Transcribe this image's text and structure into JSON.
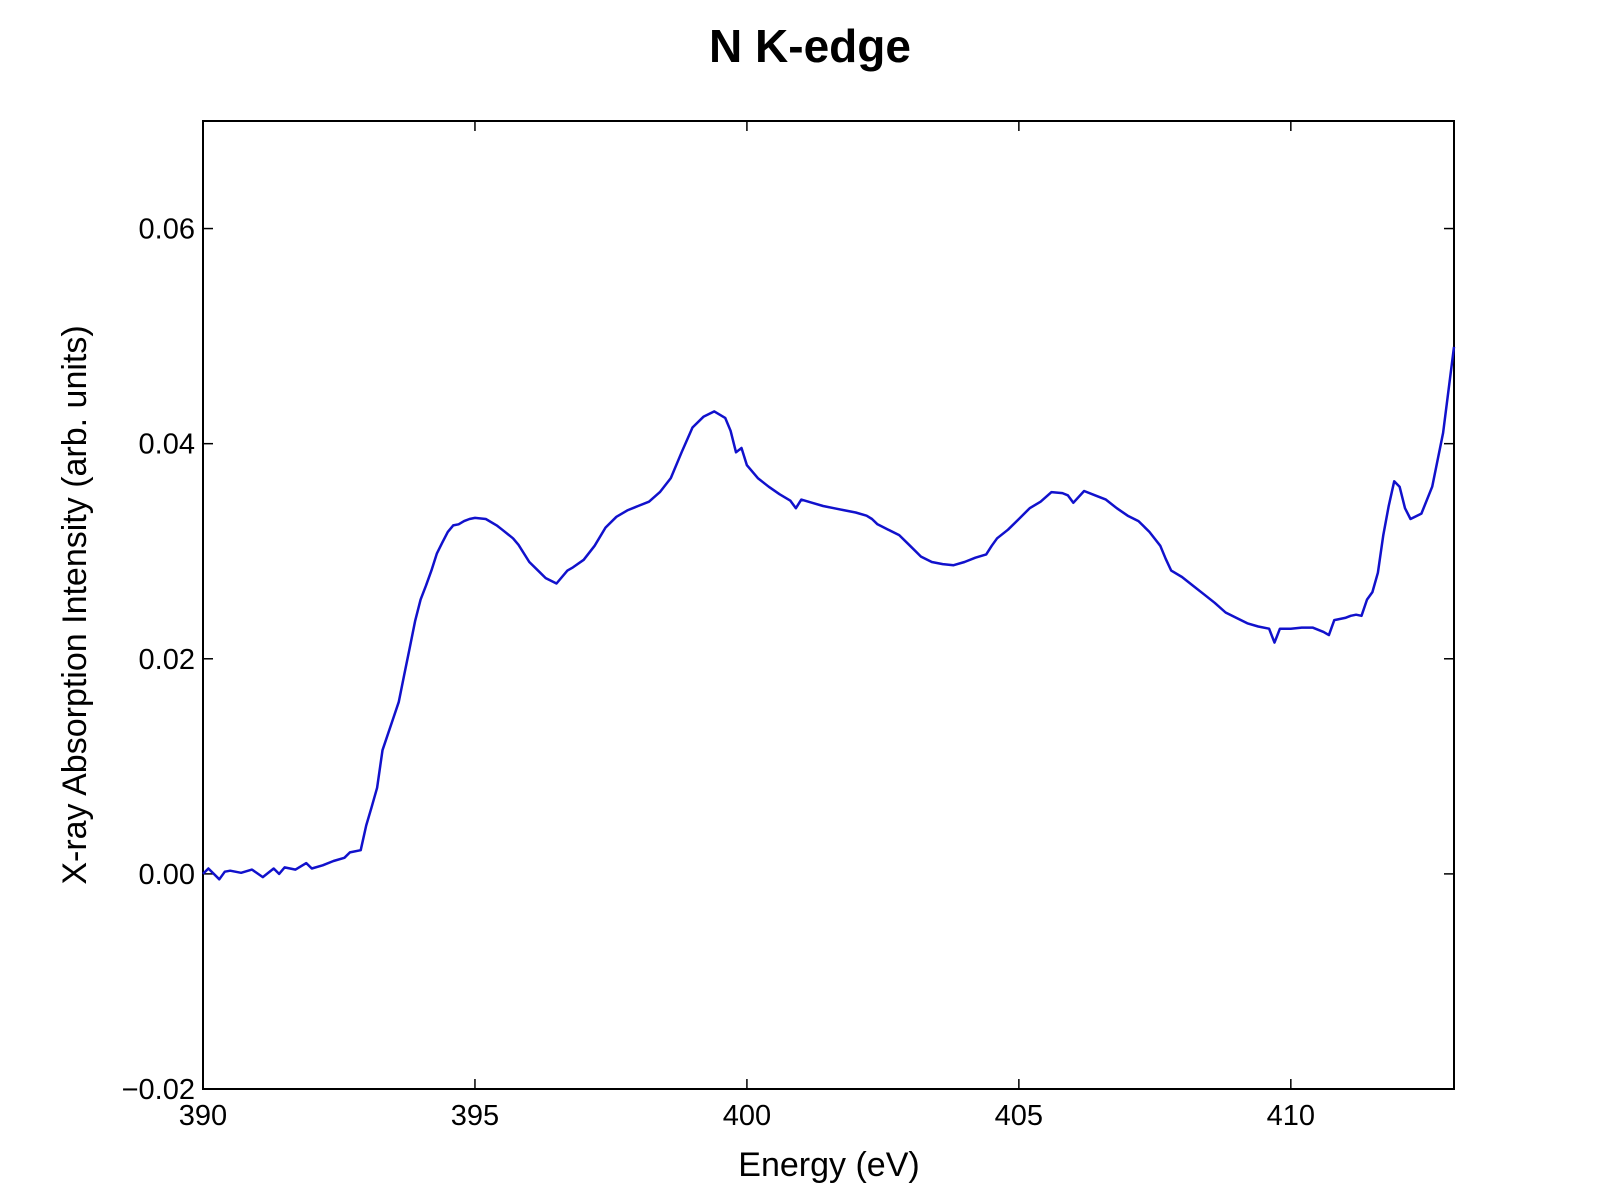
{
  "chart_data": {
    "type": "line",
    "title": "N K-edge",
    "xlabel": "Energy (eV)",
    "ylabel": "X-ray Absorption Intensity (arb. units)",
    "xlim": [
      390,
      413
    ],
    "ylim": [
      -0.02,
      0.07
    ],
    "xticks": [
      390,
      395,
      400,
      405,
      410
    ],
    "xtick_labels": [
      "390",
      "395",
      "400",
      "405",
      "410"
    ],
    "yticks": [
      -0.02,
      0.0,
      0.02,
      0.04,
      0.06
    ],
    "ytick_labels": [
      "−0.02",
      "0.00",
      "0.02",
      "0.04",
      "0.06"
    ],
    "grid": false,
    "line_color": "#1111cc",
    "series": [
      {
        "x": [
          390.0,
          390.1,
          390.3,
          390.4,
          390.5,
          390.7,
          390.9,
          391.1,
          391.3,
          391.4,
          391.5,
          391.7,
          391.9,
          392.0,
          392.2,
          392.4,
          392.6,
          392.7,
          392.9,
          393.0,
          393.1,
          393.2,
          393.3,
          393.5,
          393.6,
          393.7,
          393.8,
          393.9,
          394.0,
          394.1,
          394.2,
          394.3,
          394.4,
          394.5,
          394.6,
          394.7,
          394.8,
          394.9,
          395.0,
          395.2,
          395.4,
          395.5,
          395.6,
          395.7,
          395.8,
          396.0,
          396.2,
          396.3,
          396.5,
          396.7,
          396.8,
          397.0,
          397.2,
          397.4,
          397.6,
          397.8,
          398.0,
          398.2,
          398.4,
          398.6,
          398.8,
          399.0,
          399.2,
          399.4,
          399.6,
          399.7,
          399.8,
          399.9,
          400.0,
          400.2,
          400.4,
          400.6,
          400.8,
          400.9,
          401.0,
          401.2,
          401.4,
          401.6,
          401.8,
          402.0,
          402.2,
          402.3,
          402.4,
          402.6,
          402.8,
          403.0,
          403.2,
          403.4,
          403.6,
          403.8,
          404.0,
          404.2,
          404.4,
          404.5,
          404.6,
          404.8,
          405.0,
          405.2,
          405.4,
          405.6,
          405.8,
          405.9,
          406.0,
          406.2,
          406.4,
          406.6,
          406.8,
          407.0,
          407.2,
          407.4,
          407.6,
          407.7,
          407.8,
          408.0,
          408.2,
          408.4,
          408.6,
          408.8,
          409.0,
          409.2,
          409.4,
          409.6,
          409.7,
          409.8,
          410.0,
          410.2,
          410.4,
          410.6,
          410.7,
          410.8,
          411.0,
          411.1,
          411.2,
          411.3,
          411.4,
          411.5,
          411.6,
          411.7,
          411.8,
          411.9,
          412.0,
          412.1,
          412.2,
          412.4,
          412.6,
          412.8,
          413.0
        ],
        "y": [
          0.0,
          0.0005,
          -0.0005,
          0.0002,
          0.0003,
          0.0001,
          0.0004,
          -0.0003,
          0.0005,
          0.0,
          0.0006,
          0.0004,
          0.001,
          0.0005,
          0.0008,
          0.0012,
          0.0015,
          0.002,
          0.0022,
          0.0045,
          0.0062,
          0.008,
          0.0115,
          0.0145,
          0.016,
          0.0185,
          0.021,
          0.0235,
          0.0255,
          0.0268,
          0.0282,
          0.0298,
          0.0308,
          0.0318,
          0.0324,
          0.0325,
          0.0328,
          0.033,
          0.0331,
          0.033,
          0.0324,
          0.032,
          0.0316,
          0.0312,
          0.0306,
          0.029,
          0.028,
          0.0275,
          0.027,
          0.0282,
          0.0285,
          0.0292,
          0.0305,
          0.0322,
          0.0332,
          0.0338,
          0.0342,
          0.0346,
          0.0355,
          0.0368,
          0.0392,
          0.0415,
          0.0425,
          0.043,
          0.0424,
          0.0412,
          0.0392,
          0.0396,
          0.038,
          0.0368,
          0.036,
          0.0353,
          0.0347,
          0.034,
          0.0348,
          0.0345,
          0.0342,
          0.034,
          0.0338,
          0.0336,
          0.0333,
          0.033,
          0.0325,
          0.032,
          0.0315,
          0.0305,
          0.0295,
          0.029,
          0.0288,
          0.0287,
          0.029,
          0.0294,
          0.0297,
          0.0305,
          0.0312,
          0.032,
          0.033,
          0.034,
          0.0346,
          0.0355,
          0.0354,
          0.0352,
          0.0345,
          0.0356,
          0.0352,
          0.0348,
          0.034,
          0.0333,
          0.0328,
          0.0318,
          0.0305,
          0.0293,
          0.0282,
          0.0276,
          0.0268,
          0.026,
          0.0252,
          0.0243,
          0.0238,
          0.0233,
          0.023,
          0.0228,
          0.0215,
          0.0228,
          0.0228,
          0.0229,
          0.0229,
          0.0225,
          0.0222,
          0.0236,
          0.0238,
          0.024,
          0.0241,
          0.024,
          0.0255,
          0.0262,
          0.028,
          0.0315,
          0.0342,
          0.0365,
          0.036,
          0.034,
          0.033,
          0.0335,
          0.036,
          0.041,
          0.049
        ]
      }
    ]
  }
}
